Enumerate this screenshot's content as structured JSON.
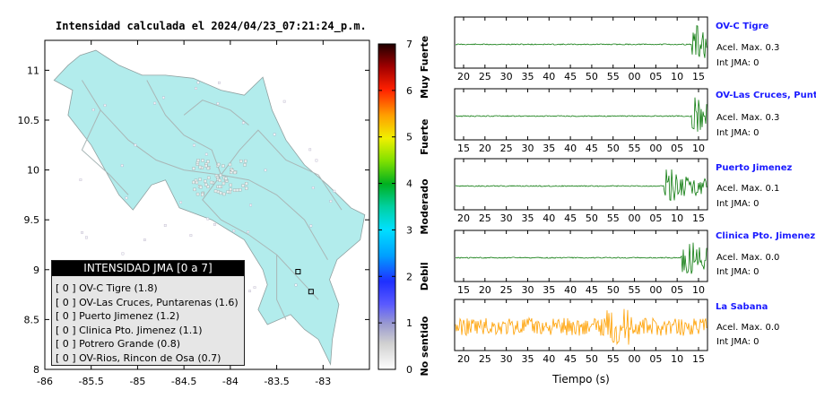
{
  "title": "Intensidad calculada el 2024/04/23_07:21:24_p.m.",
  "colors": {
    "land": "#b2ecec",
    "road": "#a9b7b7",
    "trace_green": "#0c7a0c",
    "trace_orange": "#ffa000",
    "station_label": "#1a1aff"
  },
  "map": {
    "x_ticks": [
      "-86",
      "-85.5",
      "-85",
      "-84.5",
      "-84",
      "-83.5",
      "-83"
    ],
    "y_ticks": [
      "11",
      "10.5",
      "10",
      "9.5",
      "9",
      "8.5",
      "8"
    ],
    "lon_range": [
      -86.0,
      -82.5
    ],
    "lat_range": [
      8.0,
      11.3
    ]
  },
  "colorbar": {
    "ticks": [
      "0",
      "1",
      "2",
      "3",
      "4",
      "5",
      "6",
      "7"
    ],
    "category_labels": [
      "No sentido",
      "Debil",
      "Moderado",
      "Fuerte",
      "Muy Fuerte"
    ]
  },
  "legend": {
    "header": "INTENSIDAD JMA [0 a 7]",
    "items": [
      "[ 0 ]  OV-C Tigre (1.8)",
      "[ 0 ]  OV-Las Cruces, Puntarenas (1.6)",
      "[ 0 ]  Puerto Jimenez (1.2)",
      "[ 0 ]  Clinica Pto. Jimenez (1.1)",
      "[ 0 ]  Potrero Grande (0.8)",
      "[ 0 ]  OV-Rios, Rincon de Osa (0.7)"
    ]
  },
  "waveforms": [
    {
      "name": "OV-C Tigre",
      "acel": "Acel. Max. 0.3",
      "int": "Int JMA: 0",
      "ticks": [
        "20",
        "25",
        "30",
        "35",
        "40",
        "45",
        "50",
        "55",
        "00",
        "05",
        "10",
        "15"
      ],
      "onset": 0.94
    },
    {
      "name": "OV-Las Cruces, Puntar",
      "acel": "Acel. Max. 0.3",
      "int": "Int JMA: 0",
      "ticks": [
        "15",
        "20",
        "25",
        "30",
        "35",
        "40",
        "45",
        "50",
        "55",
        "00",
        "05",
        "10"
      ],
      "onset": 0.94
    },
    {
      "name": "Puerto Jimenez",
      "acel": "Acel. Max. 0.1",
      "int": "Int JMA: 0",
      "ticks": [
        "20",
        "25",
        "30",
        "35",
        "40",
        "45",
        "50",
        "55",
        "00",
        "05",
        "10",
        "15"
      ],
      "onset": 0.83
    },
    {
      "name": "Clinica Pto. Jimenez",
      "acel": "Acel. Max. 0.0",
      "int": "Int JMA: 0",
      "ticks": [
        "15",
        "20",
        "25",
        "30",
        "35",
        "40",
        "45",
        "50",
        "55",
        "00",
        "05",
        "10"
      ],
      "onset": 0.9
    },
    {
      "name": "La Sabana",
      "acel": "Acel. Max. 0.0",
      "int": "Int JMA: 0",
      "ticks": [
        "20",
        "25",
        "30",
        "35",
        "40",
        "45",
        "50",
        "55",
        "00",
        "05",
        "10",
        "15"
      ],
      "onset": 0.0
    }
  ],
  "xlabel": "Tiempo (s)",
  "chart_data": [
    {
      "type": "map",
      "title": "Intensidad calculada el 2024/04/23_07:21:24_p.m.",
      "xlim": [
        -86,
        -82.5
      ],
      "ylim": [
        8,
        11.3
      ],
      "legend_placement": "bottom-left",
      "stations": [
        {
          "name": "OV-C Tigre",
          "jma": 0,
          "value": 1.8
        },
        {
          "name": "OV-Las Cruces, Puntarenas",
          "jma": 0,
          "value": 1.6
        },
        {
          "name": "Puerto Jimenez",
          "jma": 0,
          "value": 1.2
        },
        {
          "name": "Clinica Pto. Jimenez",
          "jma": 0,
          "value": 1.1
        },
        {
          "name": "Potrero Grande",
          "jma": 0,
          "value": 0.8
        },
        {
          "name": "OV-Rios, Rincon de Osa",
          "jma": 0,
          "value": 0.7
        }
      ]
    },
    {
      "type": "line",
      "xlabel": "Tiempo (s)",
      "series": [
        {
          "name": "OV-C Tigre",
          "acel_max": 0.3,
          "int_jma": 0
        },
        {
          "name": "OV-Las Cruces, Puntarenas",
          "acel_max": 0.3,
          "int_jma": 0
        },
        {
          "name": "Puerto Jimenez",
          "acel_max": 0.1,
          "int_jma": 0
        },
        {
          "name": "Clinica Pto. Jimenez",
          "acel_max": 0.0,
          "int_jma": 0
        },
        {
          "name": "La Sabana",
          "acel_max": 0.0,
          "int_jma": 0
        }
      ]
    }
  ]
}
